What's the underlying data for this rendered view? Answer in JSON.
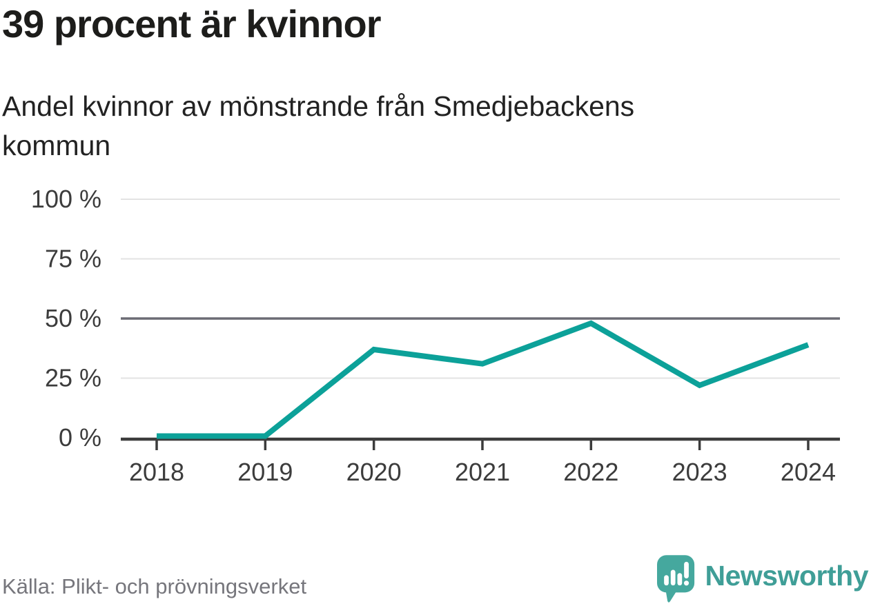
{
  "chart_data": {
    "type": "line",
    "title": "39 procent är kvinnor",
    "subtitle": "Andel kvinnor av mönstrande från Smedjebackens kommun",
    "categories": [
      "2018",
      "2019",
      "2020",
      "2021",
      "2022",
      "2023",
      "2024"
    ],
    "values": [
      0,
      0,
      37,
      31,
      48,
      22,
      39
    ],
    "unit": "%",
    "ylim": [
      0,
      100
    ],
    "yticks": [
      {
        "value": 0,
        "label": "0 %"
      },
      {
        "value": 25,
        "label": "25 %"
      },
      {
        "value": 50,
        "label": "50 %"
      },
      {
        "value": 75,
        "label": "75 %"
      },
      {
        "value": 100,
        "label": "100 %"
      }
    ],
    "reference_line_value": 50,
    "grid": "horizontal",
    "legend": "none",
    "line_color": "#0ca199"
  },
  "footer": {
    "source": "Källa: Plikt- och prövningsverket",
    "brand": "Newsworthy"
  },
  "colors": {
    "accent_teal": "#0ca199",
    "logo_bubble_teal": "#45a89e",
    "logo_wordmark_teal": "#3f9e97",
    "gridline_light": "#e3e3e3",
    "gridline_reference": "#6b6b74",
    "axis_dark": "#3c3c3c",
    "tick_label": "#3c3c3c",
    "text_dark": "#1d1d1b",
    "source_gray": "#76767c"
  }
}
